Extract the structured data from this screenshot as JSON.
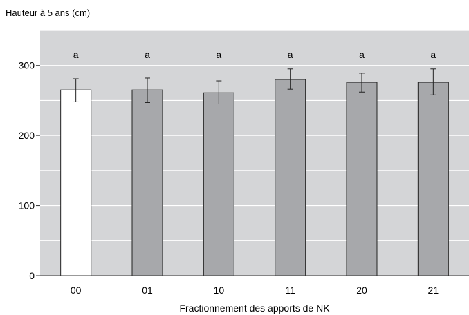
{
  "chart_data": {
    "type": "bar",
    "title": "",
    "ylabel": "Hauteur à 5 ans (cm)",
    "xlabel": "Fractionnement des apports de NK",
    "categories": [
      "00",
      "01",
      "10",
      "11",
      "20",
      "21"
    ],
    "values": [
      265,
      265,
      261,
      280,
      276,
      276
    ],
    "error_low": [
      248,
      247,
      245,
      266,
      262,
      258
    ],
    "error_high": [
      281,
      282,
      278,
      295,
      289,
      295
    ],
    "significance_labels": [
      "a",
      "a",
      "a",
      "a",
      "a",
      "a"
    ],
    "bar_colors": [
      "#ffffff",
      "#a7a8ab",
      "#a7a8ab",
      "#a7a8ab",
      "#a7a8ab",
      "#a7a8ab"
    ],
    "ylim": [
      0,
      350
    ],
    "yticks": [
      0,
      100,
      200,
      300
    ],
    "minor_gridlines": [
      50,
      150,
      250,
      350
    ],
    "grid": true,
    "plot_background": "#d4d5d7",
    "gridline_color": "#ffffff"
  }
}
